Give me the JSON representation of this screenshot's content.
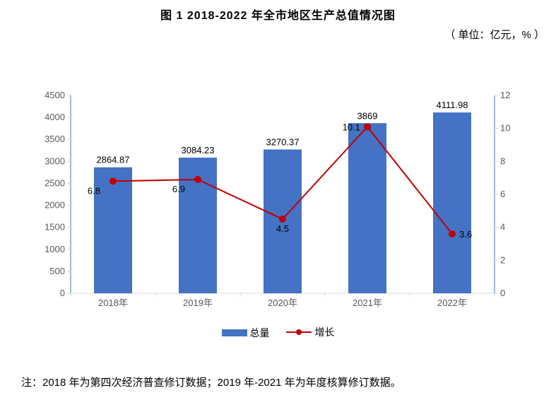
{
  "title": "图 1   2018-2022 年全市地区生产总值情况图",
  "subtitle": "（ 单位：亿元，% ）",
  "note": "注：2018 年为第四次经济普查修订数据；2019 年-2021 年为年度核算修订数据。",
  "legend": {
    "bar_label": "总量",
    "line_label": "增长"
  },
  "chart": {
    "type": "bar+line",
    "categories": [
      "2018年",
      "2019年",
      "2020年",
      "2021年",
      "2022年"
    ],
    "bar_series": {
      "values": [
        2864.87,
        3084.23,
        3270.37,
        3869,
        4111.98
      ],
      "labels": [
        "2864.87",
        "3084.23",
        "3270.37",
        "3869",
        "4111.98"
      ],
      "color": "#4472c4"
    },
    "line_series": {
      "values": [
        6.8,
        6.9,
        4.5,
        10.1,
        3.6
      ],
      "labels": [
        "6.8",
        "6.9",
        "4.5",
        "10.1",
        "3.6"
      ],
      "color": "#c00000",
      "marker_fill": "#c00000",
      "marker_size": 5,
      "line_width": 2
    },
    "y_left": {
      "min": 0,
      "max": 4500,
      "step": 500,
      "axis_color": "#4472c4",
      "tick_color": "#595959"
    },
    "y_right": {
      "min": 0,
      "max": 12,
      "step": 2,
      "axis_color": "#4472c4",
      "tick_color": "#595959"
    },
    "plot": {
      "background": "#ffffff",
      "grid": false,
      "x_axis_line_color": "#d9d9d9",
      "y_axis_line_color": "#4472c4",
      "tick_mark_color": "#d9d9d9",
      "bar_width_ratio": 0.45
    }
  }
}
